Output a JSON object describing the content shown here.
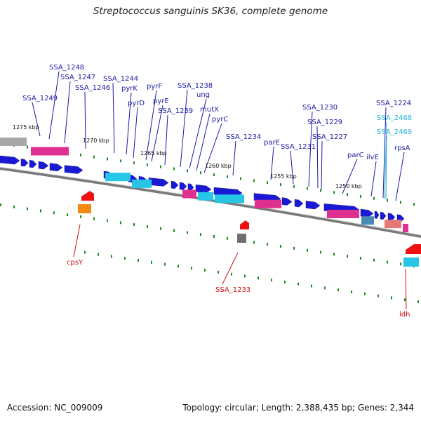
{
  "title": "Streptococcus sanguinis SK36, complete genome",
  "footer": {
    "accession": "Accession: NC_009009",
    "summary": "Topology: circular; Length: 2,388,435 bp; Genes: 2,344"
  },
  "colors": {
    "gene_blue": "#1a1ad6",
    "gene_cyan": "#27c6e6",
    "gene_magenta": "#e0308f",
    "gene_red": "#ee1111",
    "gene_orange": "#f08a12",
    "gene_gray": "#9a9a9a",
    "tick_green": "#1f8a1f",
    "label_blue": "#1a1aa6",
    "label_cyan": "#26b3d6",
    "label_red": "#cc1111"
  },
  "kbp_ticks": [
    "1275 kbp",
    "1270 kbp",
    "1265 kbp",
    "1260 kbp",
    "1255 kbp",
    "1250 kbp"
  ],
  "gene_labels_top": [
    {
      "text": "SSA_1248",
      "color": "blue"
    },
    {
      "text": "SSA_1247",
      "color": "blue"
    },
    {
      "text": "SSA_1249",
      "color": "blue"
    },
    {
      "text": "SSA_1246",
      "color": "blue"
    },
    {
      "text": "SSA_1244",
      "color": "blue"
    },
    {
      "text": "pyrK",
      "color": "blue"
    },
    {
      "text": "pyrD",
      "color": "blue"
    },
    {
      "text": "pyrF",
      "color": "blue"
    },
    {
      "text": "pyrE",
      "color": "blue"
    },
    {
      "text": "SSA_1238",
      "color": "blue"
    },
    {
      "text": "ung",
      "color": "blue"
    },
    {
      "text": "SSA_1239",
      "color": "blue"
    },
    {
      "text": "mutX",
      "color": "blue"
    },
    {
      "text": "pyrC",
      "color": "blue"
    },
    {
      "text": "SSA_1234",
      "color": "blue"
    },
    {
      "text": "parE",
      "color": "blue"
    },
    {
      "text": "SSA_1231",
      "color": "blue"
    },
    {
      "text": "SSA_1230",
      "color": "blue"
    },
    {
      "text": "SSA_1229",
      "color": "blue"
    },
    {
      "text": "SSA_1227",
      "color": "blue"
    },
    {
      "text": "parC",
      "color": "blue"
    },
    {
      "text": "ilvE",
      "color": "blue"
    },
    {
      "text": "SSA_1224",
      "color": "blue"
    },
    {
      "text": "SSA_2468",
      "color": "cyan"
    },
    {
      "text": "SSA_2469",
      "color": "cyan"
    },
    {
      "text": "rpsA",
      "color": "blue"
    }
  ],
  "gene_labels_bottom": [
    {
      "text": "cpsY",
      "color": "red"
    },
    {
      "text": "SSA_1233",
      "color": "red"
    },
    {
      "text": "ldh",
      "color": "red"
    }
  ]
}
